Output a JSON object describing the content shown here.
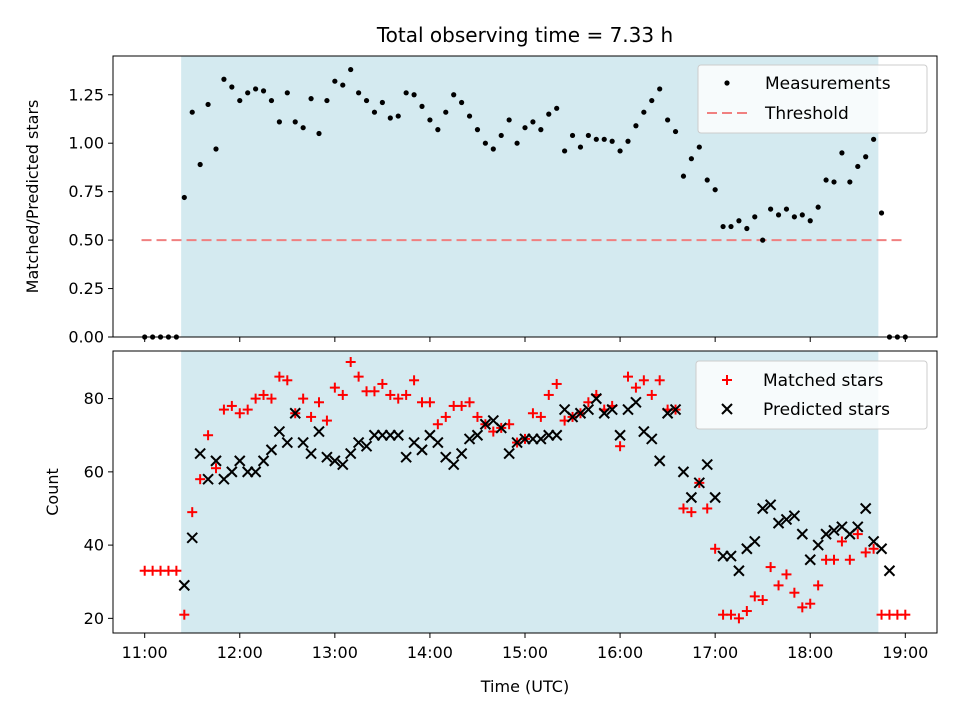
{
  "chart_data": {
    "title": "Total observing time = 7.33 h",
    "xlabel": "Time (UTC)",
    "x_ticks": [
      "11:00",
      "12:00",
      "13:00",
      "14:00",
      "15:00",
      "16:00",
      "17:00",
      "18:00",
      "19:00"
    ],
    "xlim": [
      "10:40",
      "19:20"
    ],
    "shaded_interval": [
      "11:23",
      "18:43"
    ],
    "shade_color": "#d4eaf0",
    "x_times": [
      "11:00",
      "11:05",
      "11:10",
      "11:15",
      "11:20",
      "11:25",
      "11:30",
      "11:35",
      "11:40",
      "11:45",
      "11:50",
      "11:55",
      "12:00",
      "12:05",
      "12:10",
      "12:15",
      "12:20",
      "12:25",
      "12:30",
      "12:35",
      "12:40",
      "12:45",
      "12:50",
      "12:55",
      "13:00",
      "13:05",
      "13:10",
      "13:15",
      "13:20",
      "13:25",
      "13:30",
      "13:35",
      "13:40",
      "13:45",
      "13:50",
      "13:55",
      "14:00",
      "14:05",
      "14:10",
      "14:15",
      "14:20",
      "14:25",
      "14:30",
      "14:35",
      "14:40",
      "14:45",
      "14:50",
      "14:55",
      "15:00",
      "15:05",
      "15:10",
      "15:15",
      "15:20",
      "15:25",
      "15:30",
      "15:35",
      "15:40",
      "15:45",
      "15:50",
      "15:55",
      "16:00",
      "16:05",
      "16:10",
      "16:15",
      "16:20",
      "16:25",
      "16:30",
      "16:35",
      "16:40",
      "16:45",
      "16:50",
      "16:55",
      "17:00",
      "17:05",
      "17:10",
      "17:15",
      "17:20",
      "17:25",
      "17:30",
      "17:35",
      "17:40",
      "17:45",
      "17:50",
      "17:55",
      "18:00",
      "18:05",
      "18:10",
      "18:15",
      "18:20",
      "18:25",
      "18:30",
      "18:35",
      "18:40",
      "18:45",
      "18:50",
      "18:55",
      "19:00"
    ],
    "top": {
      "type": "scatter",
      "ylabel": "Matched/Predicted stars",
      "ylim": [
        0,
        1.45
      ],
      "y_ticks": [
        "0.00",
        "0.25",
        "0.50",
        "0.75",
        "1.00",
        "1.25"
      ],
      "threshold": 0.5,
      "threshold_range": [
        "10:58",
        "19:00"
      ],
      "threshold_color": "#f08080",
      "series": [
        {
          "name": "Measurements",
          "color": "#000000",
          "values": [
            0.0,
            0.0,
            0.0,
            0.0,
            0.0,
            0.72,
            1.16,
            0.89,
            1.2,
            0.97,
            1.33,
            1.29,
            1.22,
            1.26,
            1.28,
            1.27,
            1.22,
            1.11,
            1.26,
            1.11,
            1.08,
            1.23,
            1.05,
            1.22,
            1.32,
            1.3,
            1.38,
            1.26,
            1.22,
            1.16,
            1.21,
            1.13,
            1.14,
            1.26,
            1.25,
            1.19,
            1.12,
            1.07,
            1.16,
            1.25,
            1.21,
            1.14,
            1.07,
            1.0,
            0.97,
            1.04,
            1.12,
            1.0,
            1.08,
            1.11,
            1.07,
            1.15,
            1.18,
            0.96,
            1.04,
            0.98,
            1.04,
            1.02,
            1.02,
            1.01,
            0.96,
            1.01,
            1.09,
            1.16,
            1.22,
            1.28,
            1.12,
            1.06,
            0.83,
            0.92,
            0.98,
            0.81,
            0.76,
            0.57,
            0.57,
            0.6,
            0.56,
            0.62,
            0.5,
            0.66,
            0.63,
            0.66,
            0.62,
            0.63,
            0.6,
            0.67,
            0.81,
            0.8,
            0.95,
            0.8,
            0.88,
            0.93,
            1.02,
            0.64,
            0.0,
            0.0,
            0.0
          ]
        }
      ],
      "legend": [
        "Measurements",
        "Threshold"
      ]
    },
    "bottom": {
      "type": "scatter",
      "ylabel": "Count",
      "ylim": [
        16,
        93
      ],
      "y_ticks": [
        "20",
        "40",
        "60",
        "80"
      ],
      "series": [
        {
          "name": "Matched stars",
          "color": "#ff0000",
          "marker": "+",
          "values": [
            33,
            33,
            33,
            33,
            33,
            21,
            49,
            58,
            70,
            61,
            77,
            78,
            76,
            77,
            80,
            81,
            80,
            86,
            85,
            76,
            80,
            75,
            79,
            74,
            83,
            81,
            90,
            86,
            82,
            82,
            84,
            81,
            80,
            81,
            85,
            79,
            79,
            73,
            75,
            78,
            78,
            79,
            75,
            73,
            71,
            72,
            73,
            68,
            69,
            76,
            75,
            81,
            84,
            74,
            75,
            76,
            79,
            81,
            77,
            78,
            67,
            86,
            83,
            85,
            81,
            85,
            77,
            77,
            50,
            49,
            57,
            50,
            39,
            21,
            21,
            20,
            22,
            26,
            25,
            34,
            29,
            32,
            27,
            23,
            24,
            29,
            36,
            36,
            41,
            36,
            43,
            38,
            39,
            21,
            21,
            21,
            21
          ]
        },
        {
          "name": "Predicted stars",
          "color": "#000000",
          "marker": "x",
          "values": [
            null,
            null,
            null,
            null,
            null,
            29,
            42,
            65,
            58,
            63,
            58,
            60,
            63,
            60,
            60,
            63,
            66,
            71,
            68,
            76,
            68,
            65,
            71,
            64,
            63,
            62,
            65,
            68,
            67,
            70,
            70,
            70,
            70,
            64,
            68,
            66,
            70,
            68,
            64,
            62,
            65,
            69,
            70,
            73,
            74,
            72,
            65,
            68,
            69,
            69,
            69,
            70,
            70,
            77,
            75,
            76,
            77,
            80,
            76,
            77,
            70,
            77,
            79,
            71,
            69,
            63,
            76,
            77,
            60,
            53,
            57,
            62,
            53,
            37,
            37,
            33,
            39,
            41,
            50,
            51,
            46,
            47,
            48,
            43,
            36,
            40,
            43,
            44,
            45,
            43,
            45,
            50,
            41,
            39,
            33,
            null,
            null
          ]
        }
      ],
      "legend": [
        "Matched stars",
        "Predicted stars"
      ]
    }
  }
}
